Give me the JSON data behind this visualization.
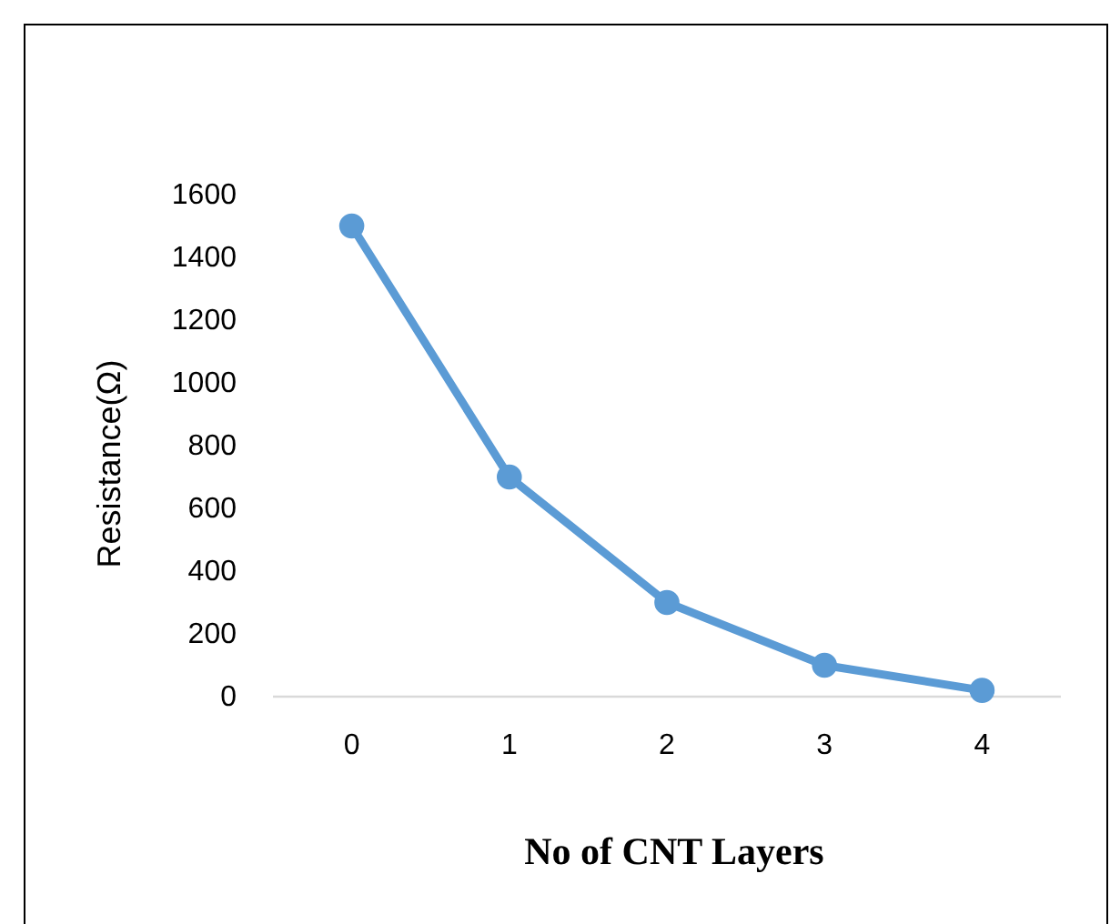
{
  "chart_data": {
    "type": "line",
    "xlabel": "No of CNT Layers",
    "ylabel": "Resistance(Ω)",
    "categories": [
      "0",
      "1",
      "2",
      "3",
      "4"
    ],
    "series": [
      {
        "color": "#5b9bd5",
        "values": [
          1500,
          700,
          300,
          100,
          20
        ]
      }
    ],
    "ylim": [
      0,
      1600
    ],
    "yticks": [
      0,
      200,
      400,
      600,
      800,
      1000,
      1200,
      1400,
      1600
    ],
    "grid": false,
    "marker": "circle",
    "line_style": "solid"
  }
}
